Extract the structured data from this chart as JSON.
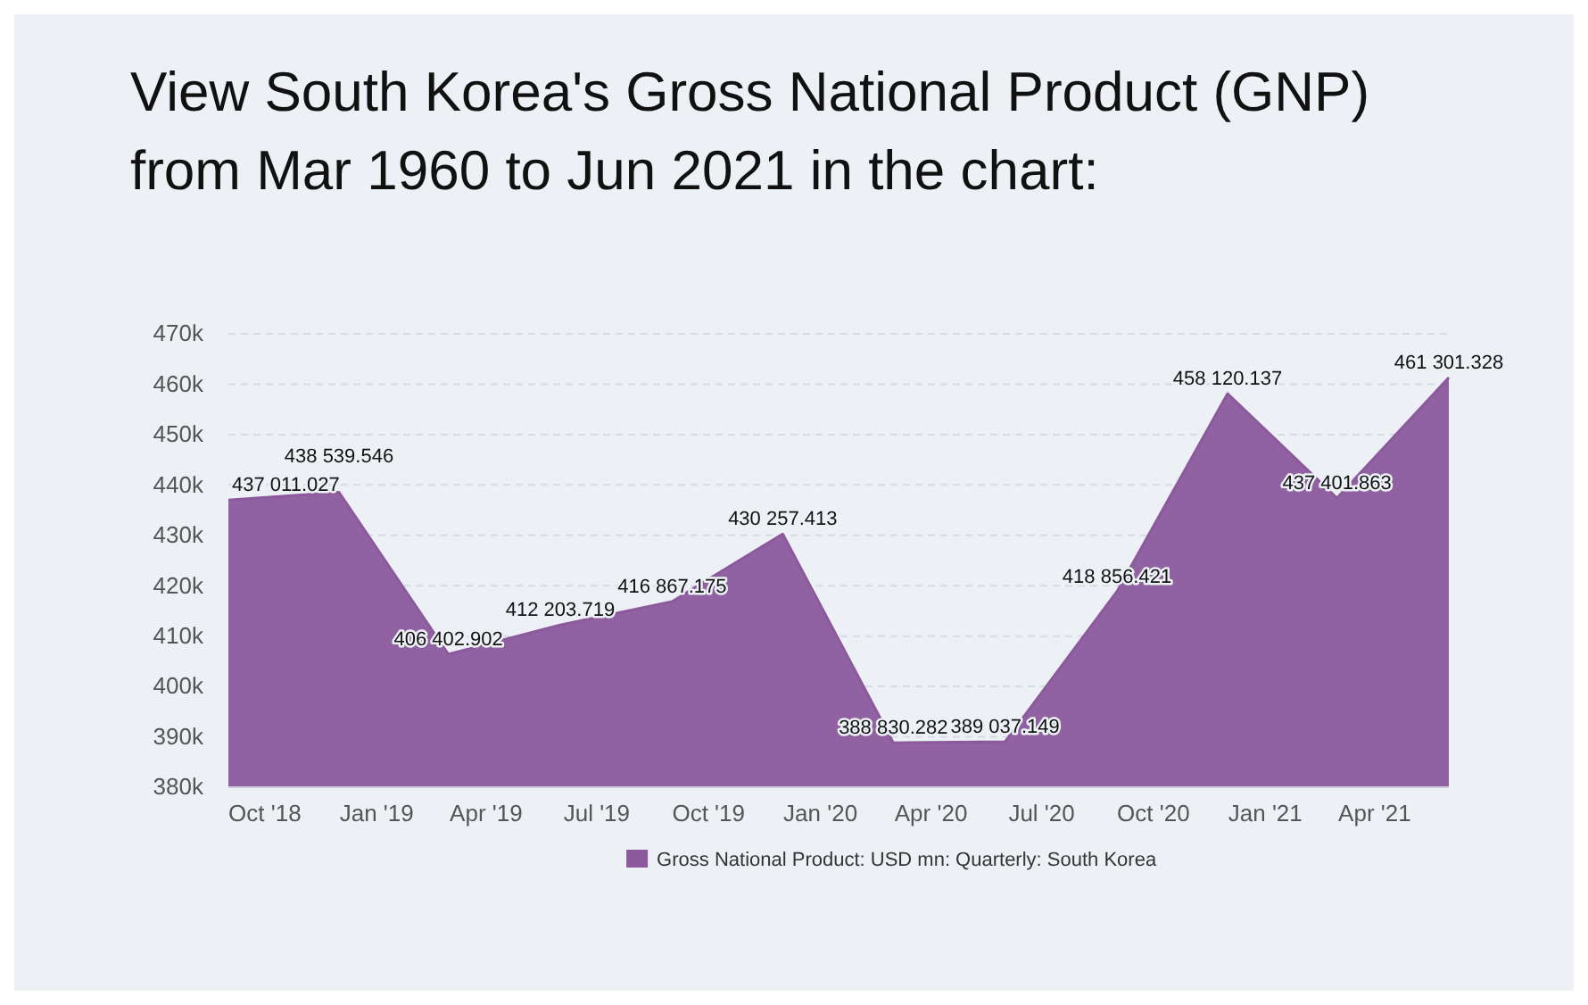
{
  "chart_data": {
    "type": "area",
    "title": "View South Korea's Gross National Product (GNP) from Mar 1960 to Jun 2021 in the chart:",
    "x": [
      "2018-09",
      "2018-12",
      "2019-03",
      "2019-06",
      "2019-09",
      "2019-12",
      "2020-03",
      "2020-06",
      "2020-09",
      "2020-12",
      "2021-03",
      "2021-06"
    ],
    "series": [
      {
        "name": "Gross National Product: USD mn: Quarterly: South Korea",
        "color": "#8c5a9c",
        "values": [
          437011.027,
          438539.546,
          406402.902,
          412203.719,
          416867.175,
          430257.413,
          388830.282,
          389037.149,
          418856.421,
          458120.137,
          437401.863,
          461301.328
        ],
        "value_labels": [
          "437 011.027",
          "438 539.546",
          "406 402.902",
          "412 203.719",
          "416 867.175",
          "430 257.413",
          "388 830.282",
          "389 037.149",
          "418 856.421",
          "458 120.137",
          "437 401.863",
          "461 301.328"
        ]
      }
    ],
    "xlim": [
      "2018-09",
      "2021-06"
    ],
    "xticks": [
      {
        "value": "2018-10",
        "label": "Oct '18"
      },
      {
        "value": "2019-01",
        "label": "Jan '19"
      },
      {
        "value": "2019-04",
        "label": "Apr '19"
      },
      {
        "value": "2019-07",
        "label": "Jul '19"
      },
      {
        "value": "2019-10",
        "label": "Oct '19"
      },
      {
        "value": "2020-01",
        "label": "Jan '20"
      },
      {
        "value": "2020-04",
        "label": "Apr '20"
      },
      {
        "value": "2020-07",
        "label": "Jul '20"
      },
      {
        "value": "2020-10",
        "label": "Oct '20"
      },
      {
        "value": "2021-01",
        "label": "Jan '21"
      },
      {
        "value": "2021-04",
        "label": "Apr '21"
      }
    ],
    "ylim": [
      380000,
      470000
    ],
    "yticks": [
      {
        "value": 380000,
        "label": "380k"
      },
      {
        "value": 390000,
        "label": "390k"
      },
      {
        "value": 400000,
        "label": "400k"
      },
      {
        "value": 410000,
        "label": "410k"
      },
      {
        "value": 420000,
        "label": "420k"
      },
      {
        "value": 430000,
        "label": "430k"
      },
      {
        "value": 440000,
        "label": "440k"
      },
      {
        "value": 450000,
        "label": "450k"
      },
      {
        "value": 460000,
        "label": "460k"
      },
      {
        "value": 470000,
        "label": "470k"
      }
    ],
    "grid": "y",
    "legend": "bottom"
  }
}
